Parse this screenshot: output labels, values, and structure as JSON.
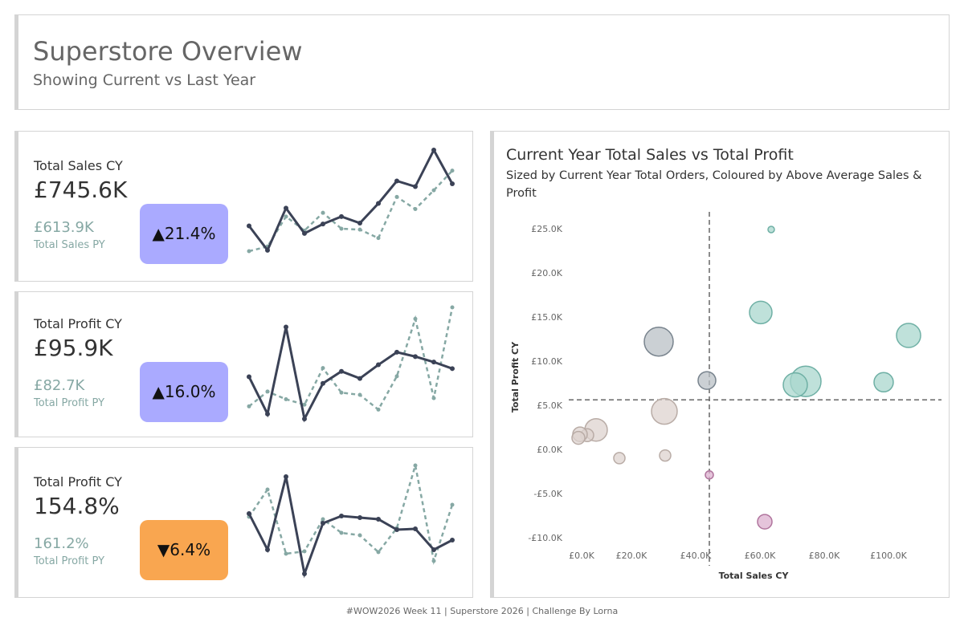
{
  "header": {
    "title": "Superstore Overview",
    "subtitle": "Showing Current vs Last Year"
  },
  "kpis": [
    {
      "label": "Total Sales CY",
      "value": "£745.6K",
      "py_value": "£613.9K",
      "py_label": "Total Sales PY",
      "change": "▲21.4%",
      "change_color": "#aaaaff"
    },
    {
      "label": "Total Profit CY",
      "value": "£95.9K",
      "py_value": "£82.7K",
      "py_label": "Total Profit PY",
      "change": "▲16.0%",
      "change_color": "#aaaaff"
    },
    {
      "label": "Total Profit CY",
      "value": "154.8%",
      "py_value": "161.2%",
      "py_label": "Total Profit PY",
      "change": "▼6.4%",
      "change_color": "#f9a650"
    }
  ],
  "chart_data": [
    {
      "type": "line",
      "series": [
        {
          "color": "#3b4256",
          "values": [
            42,
            16,
            61,
            34,
            44,
            52,
            45,
            66,
            90,
            84,
            123,
            87
          ]
        },
        {
          "color": "#86a8a4",
          "dashed": true,
          "values": [
            15,
            20,
            52,
            37,
            56,
            39,
            38,
            29,
            73,
            60,
            80,
            101
          ]
        }
      ]
    },
    {
      "type": "line",
      "series": [
        {
          "color": "#3b4256",
          "values": [
            8.9,
            2.1,
            18,
            1.2,
            7.7,
            9.9,
            8.6,
            11.1,
            13.4,
            12.6,
            11.6,
            10.4
          ]
        },
        {
          "color": "#86a8a4",
          "dashed": true,
          "values": [
            3.5,
            6.2,
            4.8,
            3.8,
            10.5,
            6,
            5.6,
            2.9,
            9,
            19.5,
            5,
            21.6
          ]
        }
      ]
    },
    {
      "type": "line",
      "series": [
        {
          "color": "#3b4256",
          "values": [
            150,
            127.5,
            173,
            112.5,
            144,
            148.5,
            147.5,
            146.5,
            140,
            140.5,
            127.5,
            133.5
          ]
        },
        {
          "color": "#86a8a4",
          "dashed": true,
          "values": [
            148,
            165,
            125,
            126.5,
            146.5,
            138,
            136.5,
            126,
            141,
            180,
            120.5,
            155.5
          ]
        }
      ]
    },
    {
      "type": "scatter",
      "title": "Current Year Total Sales vs Total Profit",
      "subtitle": "Sized by Current Year Total Orders, Coloured by Above Average Sales & Profit",
      "x_label": "Total Sales CY",
      "y_label": "Total Profit CY",
      "xlim": [
        -2000,
        116000
      ],
      "ylim": [
        -11000,
        27000
      ],
      "xticks": [
        {
          "value": 0,
          "label": "£0.0K"
        },
        {
          "value": 20000,
          "label": "£20.0K"
        },
        {
          "value": 40000,
          "label": "£40.0K"
        },
        {
          "value": 60000,
          "label": "£60.0K"
        },
        {
          "value": 80000,
          "label": "£80.0K"
        },
        {
          "value": 100000,
          "label": "£100.0K"
        }
      ],
      "yticks": [
        {
          "value": -10000,
          "label": "-£10.0K"
        },
        {
          "value": -5000,
          "label": "-£5.0K"
        },
        {
          "value": 0,
          "label": "£0.0K"
        },
        {
          "value": 5000,
          "label": "£5.0K"
        },
        {
          "value": 10000,
          "label": "£10.0K"
        },
        {
          "value": 15000,
          "label": "£15.0K"
        },
        {
          "value": 20000,
          "label": "£20.0K"
        },
        {
          "value": 25000,
          "label": "£25.0K"
        }
      ],
      "reference_lines": {
        "x": 44250,
        "y": 5700
      },
      "series": [
        {
          "color": "#a9d7ce",
          "stroke": "#6fb0a5",
          "x": [
            63500,
            60250,
            106250,
            98500,
            74250,
            71000
          ],
          "values": [
            25000,
            15600,
            13000,
            7700,
            7800,
            7400
          ],
          "sizes": [
            24,
            294,
            338,
            216,
            542,
            338
          ]
        },
        {
          "color": "#b9c0c6",
          "stroke": "#79848e",
          "x": [
            28500,
            43500
          ],
          "values": [
            12300,
            7900
          ],
          "sizes": [
            486,
            182
          ]
        },
        {
          "color": "#ddd3cf",
          "stroke": "#b9aca6",
          "x": [
            30250,
            9000,
            6250,
            4000,
            3500,
            16250,
            30500
          ],
          "values": [
            4400,
            2300,
            1700,
            1800,
            1400,
            -900,
            -600
          ],
          "sizes": [
            384,
            294,
            96,
            122,
            96,
            74,
            74
          ]
        },
        {
          "color": "#dcb0cf",
          "stroke": "#b0749d",
          "x": [
            44250,
            61500
          ],
          "values": [
            -2800,
            -8100
          ],
          "sizes": [
            38,
            122
          ]
        }
      ]
    }
  ],
  "footer": "#WOW2026 Week 11 | Superstore 2026 | Challenge By Lorna"
}
